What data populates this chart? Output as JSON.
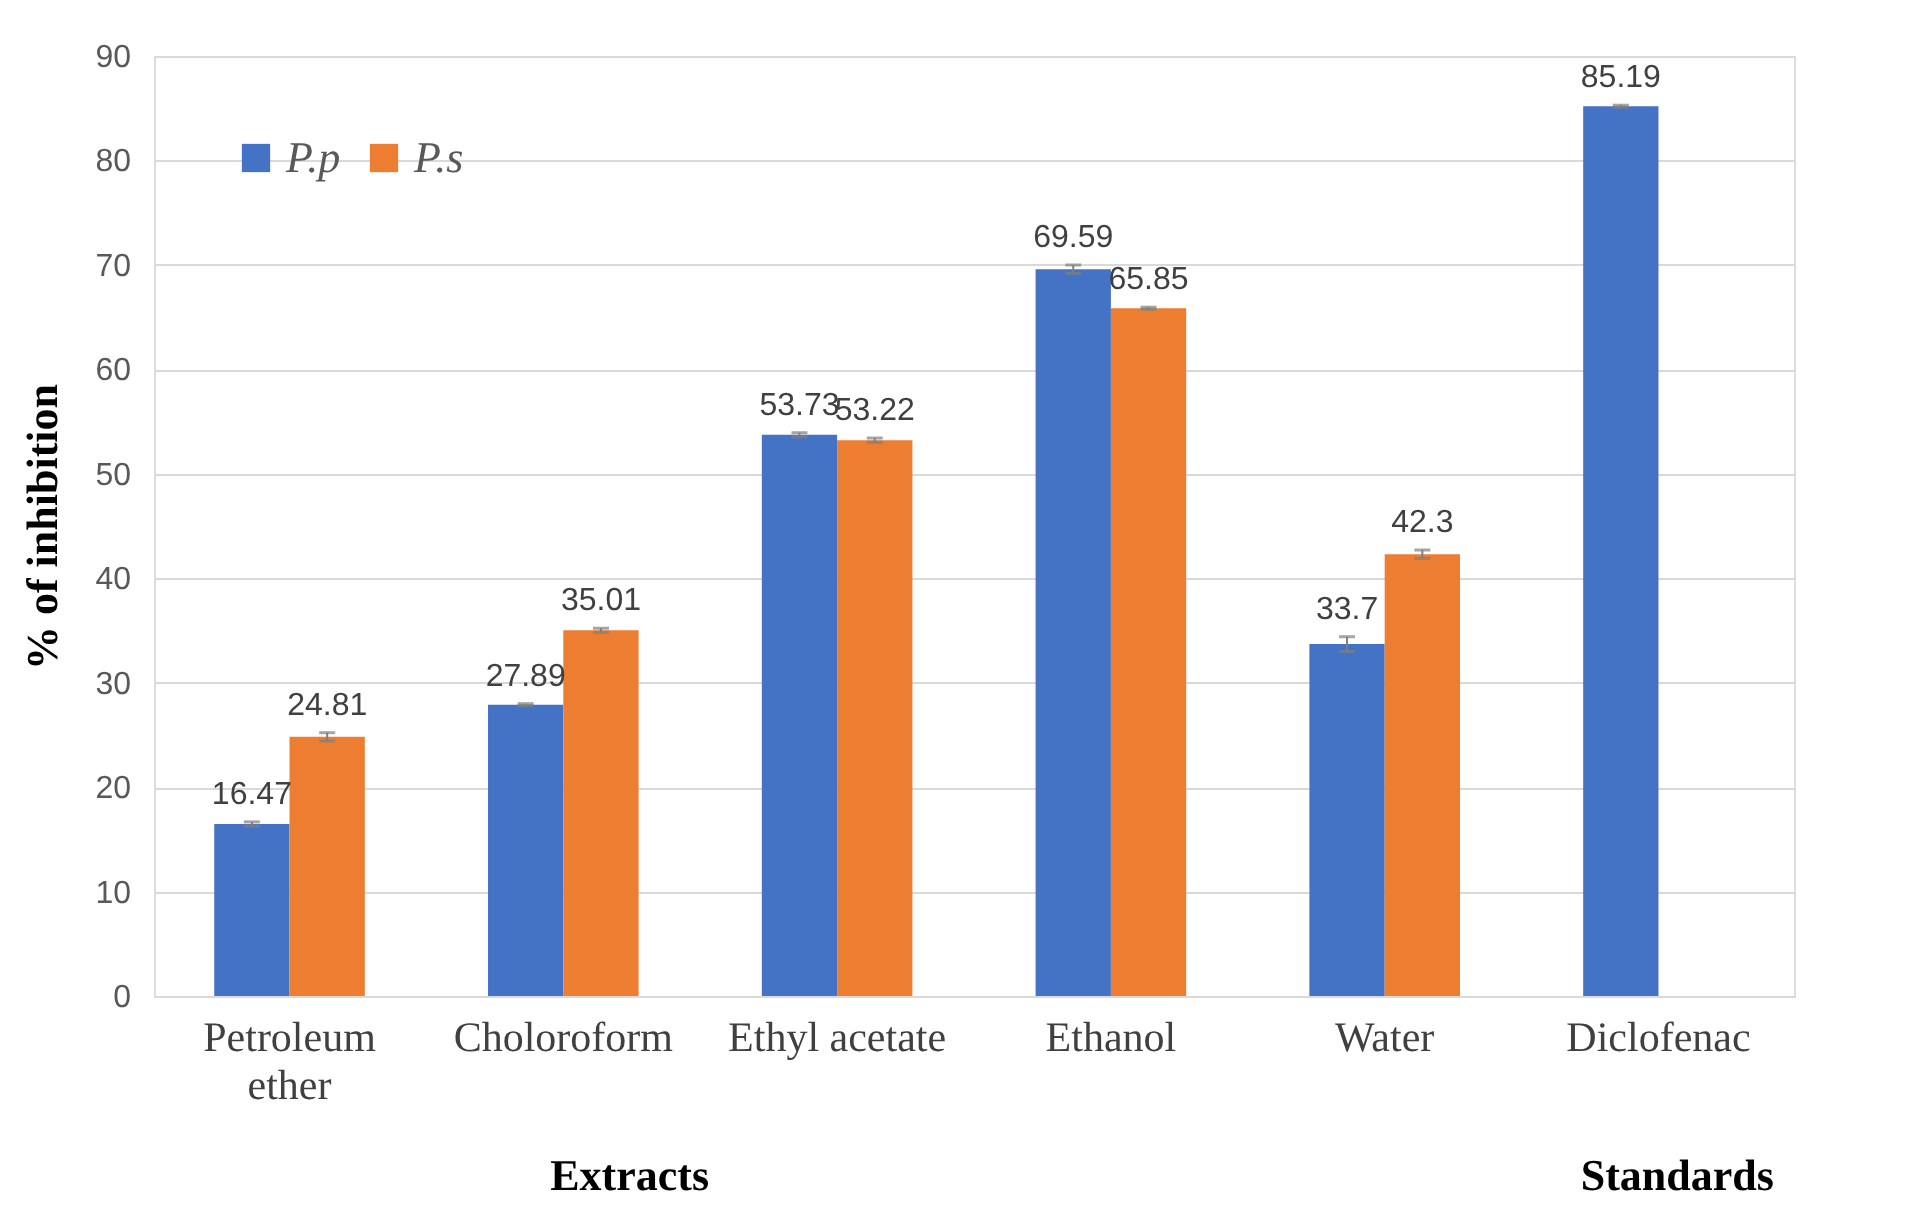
{
  "chart_data": {
    "type": "bar",
    "ylabel": "% of inhibition",
    "categories": [
      "Petroleum ether",
      "Choloroform",
      "Ethyl acetate",
      "Ethanol",
      "Water",
      "Diclofenac"
    ],
    "series": [
      {
        "name": "P.p",
        "color": "#4472c4",
        "values": [
          16.47,
          27.89,
          53.73,
          69.59,
          33.7,
          85.19
        ],
        "errors": [
          0.2,
          0.1,
          0.2,
          0.4,
          0.7,
          0.1
        ]
      },
      {
        "name": "P.s",
        "color": "#ed7d31",
        "values": [
          24.81,
          35.01,
          53.22,
          65.85,
          42.3,
          null
        ],
        "errors": [
          0.4,
          0.2,
          0.2,
          0.1,
          0.4,
          null
        ]
      }
    ],
    "ylim": [
      0,
      90
    ],
    "yticks": [
      0,
      10,
      20,
      30,
      40,
      50,
      60,
      70,
      80,
      90
    ],
    "grid": "y",
    "legend": "top left",
    "data_labels": true,
    "annotations": [
      "Extracts",
      "Standards"
    ]
  }
}
